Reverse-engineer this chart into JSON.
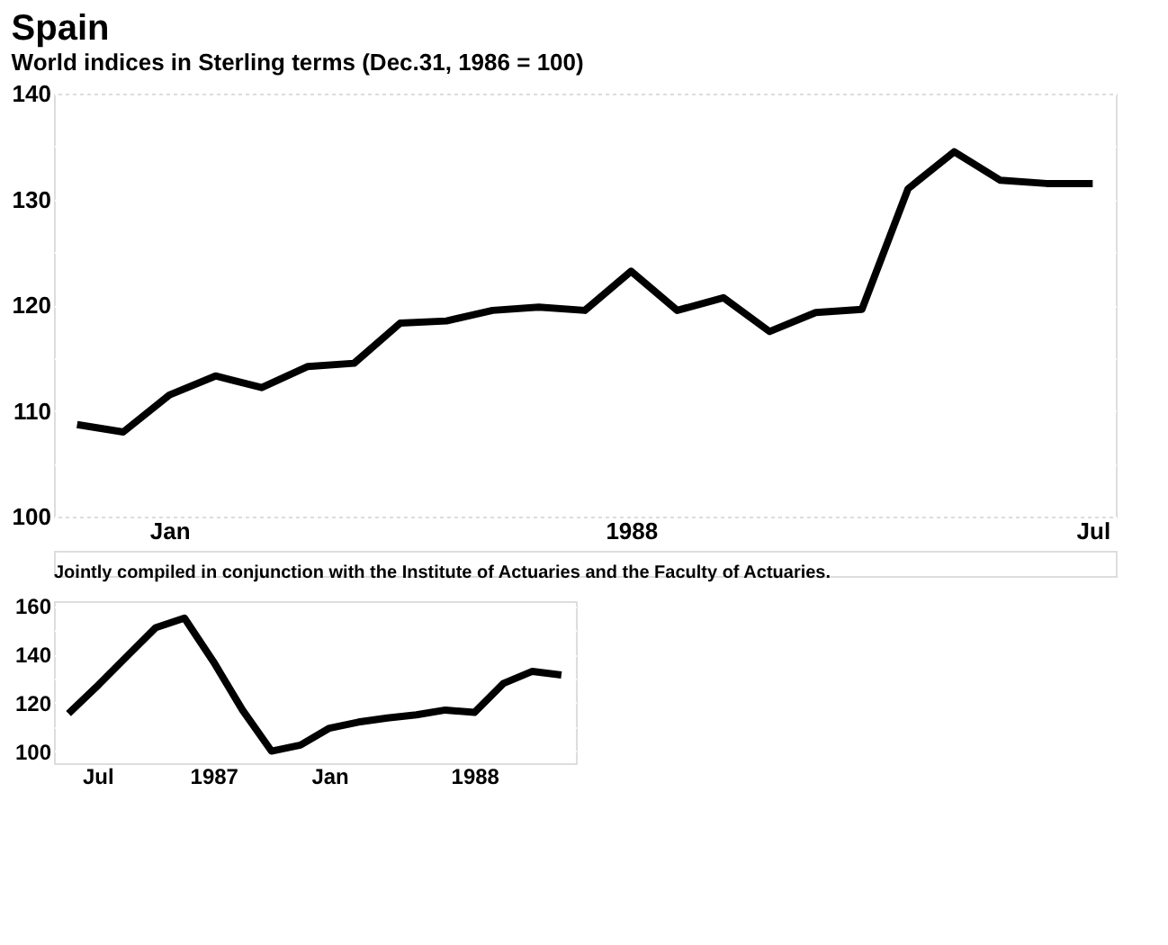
{
  "chart_data": [
    {
      "type": "line",
      "title": "Spain",
      "subtitle": "World indices in Sterling terms (Dec.31, 1986 = 100)",
      "categories": [
        null,
        null,
        "Jan",
        null,
        null,
        null,
        null,
        null,
        null,
        null,
        null,
        null,
        "1988",
        null,
        null,
        null,
        null,
        null,
        null,
        null,
        null,
        null,
        "Jul"
      ],
      "series": [
        {
          "color": "#000000",
          "values": [
            108.7,
            108.0,
            111.5,
            113.3,
            112.2,
            114.2,
            114.5,
            118.3,
            118.5,
            119.5,
            119.8,
            119.5,
            123.2,
            119.5,
            120.7,
            117.5,
            119.3,
            119.6,
            131,
            134.5,
            131.8,
            131.5,
            131.5
          ]
        }
      ],
      "ylim": [
        100,
        140
      ],
      "yticks": [
        100,
        {
          "value": 105,
          "label": null
        },
        110,
        {
          "value": 115,
          "label": null
        },
        120,
        {
          "value": 125,
          "label": null
        },
        130,
        {
          "value": 135,
          "label": null
        },
        140
      ],
      "grid": "y",
      "marker": "none",
      "line_style": "solid",
      "annotations": [
        "Jointly compiled in conjunction with the Institute of Actuaries and the Faculty of Actuaries."
      ]
    },
    {
      "type": "line",
      "categories": [
        null,
        "Jul",
        null,
        null,
        null,
        "1987",
        null,
        null,
        null,
        "Jan",
        null,
        null,
        null,
        null,
        "1988",
        null,
        null,
        null
      ],
      "series": [
        {
          "color": "#000000",
          "values": [
            115.5,
            127,
            139,
            151,
            155,
            137,
            117,
            100,
            102.5,
            109.5,
            112,
            113.7,
            115,
            117,
            116,
            128,
            133,
            131.5
          ]
        }
      ],
      "ylim": [
        95,
        162
      ],
      "yticks": [
        100,
        {
          "value": 110,
          "label": null
        },
        120,
        {
          "value": 130,
          "label": null
        },
        140,
        {
          "value": 150,
          "label": null
        },
        160
      ],
      "grid": "y",
      "marker": "none",
      "line_style": "solid"
    }
  ]
}
